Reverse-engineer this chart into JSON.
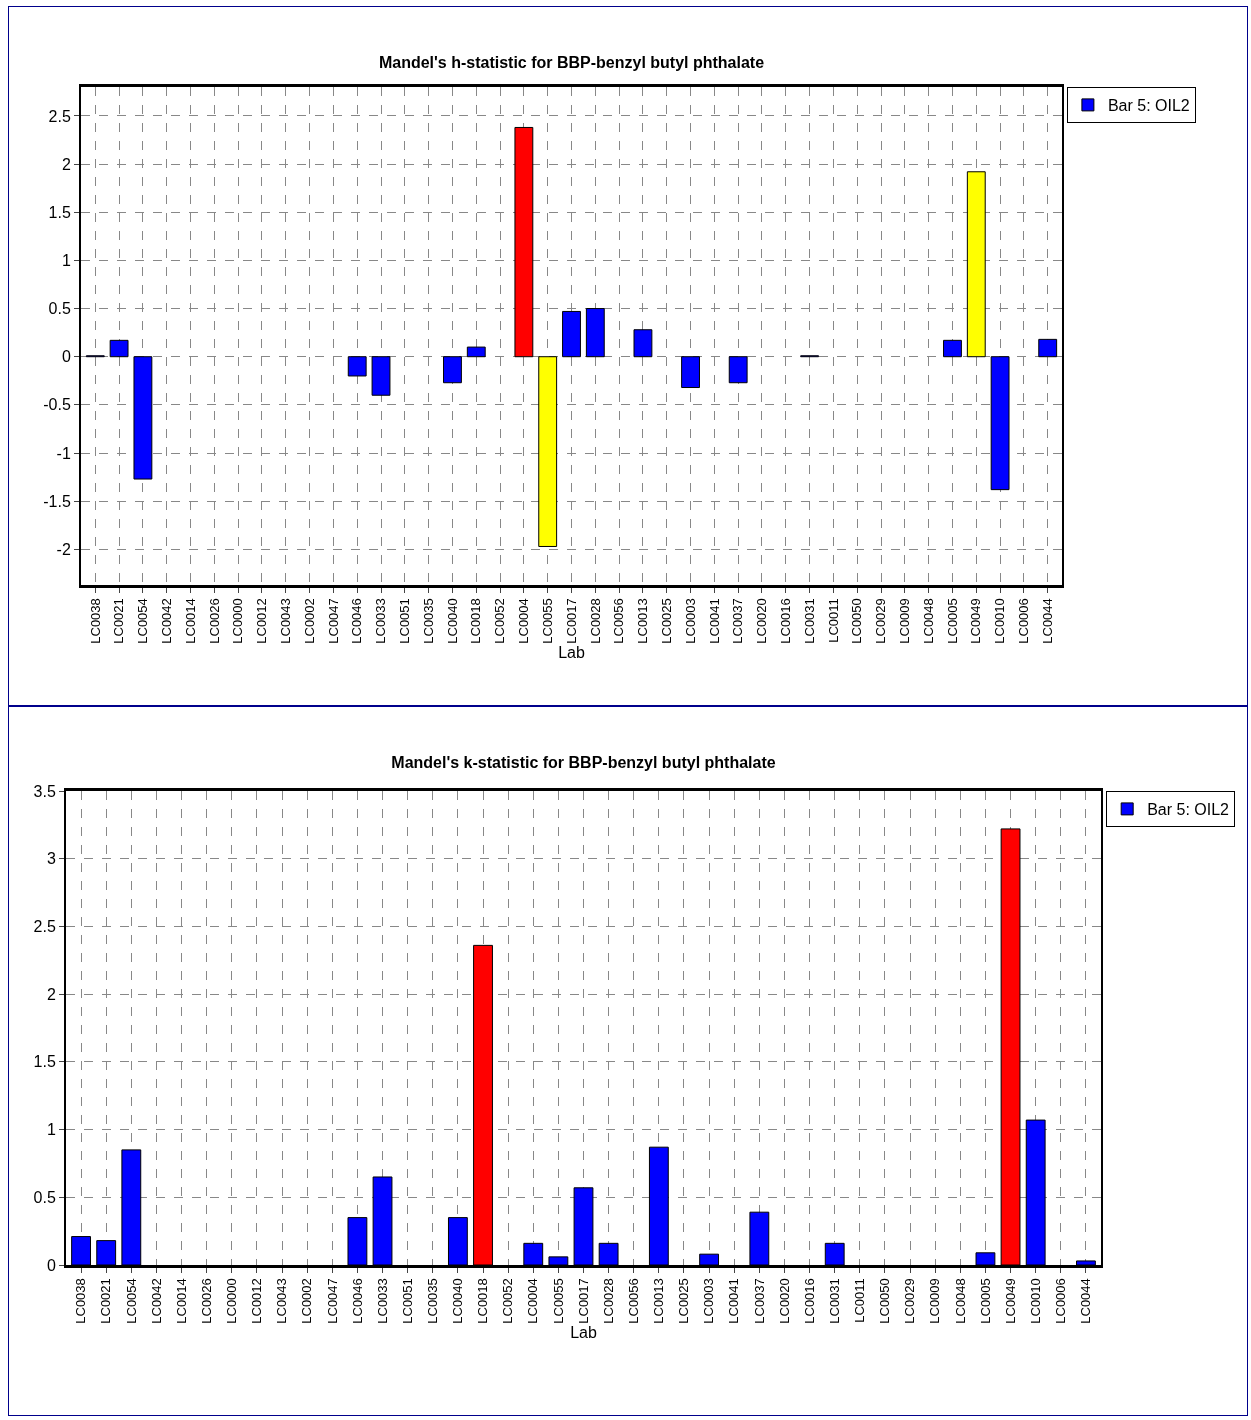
{
  "chart_data": [
    {
      "type": "bar",
      "title": "Mandel's h-statistic for BBP-benzyl butyl phthalate",
      "xlabel": "Lab",
      "categories": [
        "LC0038",
        "LC0021",
        "LC0054",
        "LC0042",
        "LC0014",
        "LC0026",
        "LC0000",
        "LC0012",
        "LC0043",
        "LC0002",
        "LC0047",
        "LC0046",
        "LC0033",
        "LC0051",
        "LC0035",
        "LC0040",
        "LC0018",
        "LC0052",
        "LC0004",
        "LC0055",
        "LC0017",
        "LC0028",
        "LC0056",
        "LC0013",
        "LC0025",
        "LC0003",
        "LC0041",
        "LC0037",
        "LC0020",
        "LC0016",
        "LC0031",
        "LC0011",
        "LC0050",
        "LC0029",
        "LC0009",
        "LC0048",
        "LC0005",
        "LC0049",
        "LC0010",
        "LC0006",
        "LC0044"
      ],
      "series": [
        {
          "name": "Bar 5: OIL2",
          "values": [
            0.01,
            0.17,
            -1.27,
            null,
            null,
            null,
            null,
            null,
            null,
            null,
            null,
            -0.2,
            -0.4,
            null,
            null,
            -0.27,
            0.1,
            null,
            2.38,
            -1.97,
            0.47,
            0.5,
            null,
            0.28,
            null,
            -0.32,
            null,
            -0.27,
            null,
            null,
            0.01,
            null,
            null,
            null,
            null,
            null,
            0.17,
            1.92,
            -1.38,
            null,
            0.18
          ],
          "colors": [
            "#0000ff",
            "#0000ff",
            "#0000ff",
            "#0000ff",
            "#0000ff",
            "#0000ff",
            "#0000ff",
            "#0000ff",
            "#0000ff",
            "#0000ff",
            "#0000ff",
            "#0000ff",
            "#0000ff",
            "#0000ff",
            "#0000ff",
            "#0000ff",
            "#0000ff",
            "#0000ff",
            "#ff0000",
            "#ffff00",
            "#0000ff",
            "#0000ff",
            "#0000ff",
            "#0000ff",
            "#0000ff",
            "#0000ff",
            "#0000ff",
            "#0000ff",
            "#0000ff",
            "#0000ff",
            "#0000ff",
            "#0000ff",
            "#0000ff",
            "#0000ff",
            "#0000ff",
            "#0000ff",
            "#0000ff",
            "#ffff00",
            "#0000ff",
            "#0000ff",
            "#0000ff"
          ]
        }
      ],
      "ylim": [
        -2.37,
        2.8
      ],
      "yticks": [
        -2,
        -1.5,
        -1,
        -0.5,
        0,
        0.5,
        1,
        1.5,
        2,
        2.5
      ],
      "grid": true,
      "legend": "top right"
    },
    {
      "type": "bar",
      "title": "Mandel's k-statistic for BBP-benzyl butyl phthalate",
      "xlabel": "Lab",
      "categories": [
        "LC0038",
        "LC0021",
        "LC0054",
        "LC0042",
        "LC0014",
        "LC0026",
        "LC0000",
        "LC0012",
        "LC0043",
        "LC0002",
        "LC0047",
        "LC0046",
        "LC0033",
        "LC0051",
        "LC0035",
        "LC0040",
        "LC0018",
        "LC0052",
        "LC0004",
        "LC0055",
        "LC0017",
        "LC0028",
        "LC0056",
        "LC0013",
        "LC0025",
        "LC0003",
        "LC0041",
        "LC0037",
        "LC0020",
        "LC0016",
        "LC0031",
        "LC0011",
        "LC0050",
        "LC0029",
        "LC0009",
        "LC0048",
        "LC0005",
        "LC0049",
        "LC0010",
        "LC0006",
        "LC0044"
      ],
      "series": [
        {
          "name": "Bar 5: OIL2",
          "values": [
            0.21,
            0.18,
            0.85,
            null,
            null,
            null,
            null,
            null,
            null,
            null,
            null,
            0.35,
            0.65,
            null,
            null,
            0.35,
            2.36,
            null,
            0.16,
            0.06,
            0.57,
            0.16,
            null,
            0.87,
            null,
            0.08,
            null,
            0.39,
            null,
            null,
            0.16,
            null,
            null,
            null,
            null,
            null,
            0.09,
            3.22,
            1.07,
            null,
            0.03
          ],
          "colors": [
            "#0000ff",
            "#0000ff",
            "#0000ff",
            "#0000ff",
            "#0000ff",
            "#0000ff",
            "#0000ff",
            "#0000ff",
            "#0000ff",
            "#0000ff",
            "#0000ff",
            "#0000ff",
            "#0000ff",
            "#0000ff",
            "#0000ff",
            "#0000ff",
            "#ff0000",
            "#0000ff",
            "#0000ff",
            "#0000ff",
            "#0000ff",
            "#0000ff",
            "#0000ff",
            "#0000ff",
            "#0000ff",
            "#0000ff",
            "#0000ff",
            "#0000ff",
            "#0000ff",
            "#0000ff",
            "#0000ff",
            "#0000ff",
            "#0000ff",
            "#0000ff",
            "#0000ff",
            "#0000ff",
            "#0000ff",
            "#ff0000",
            "#0000ff",
            "#0000ff",
            "#0000ff"
          ]
        }
      ],
      "ylim": [
        0,
        3.5
      ],
      "yticks": [
        0,
        0.5,
        1,
        1.5,
        2,
        2.5,
        3,
        3.5
      ],
      "grid": true,
      "legend": "top right"
    }
  ]
}
